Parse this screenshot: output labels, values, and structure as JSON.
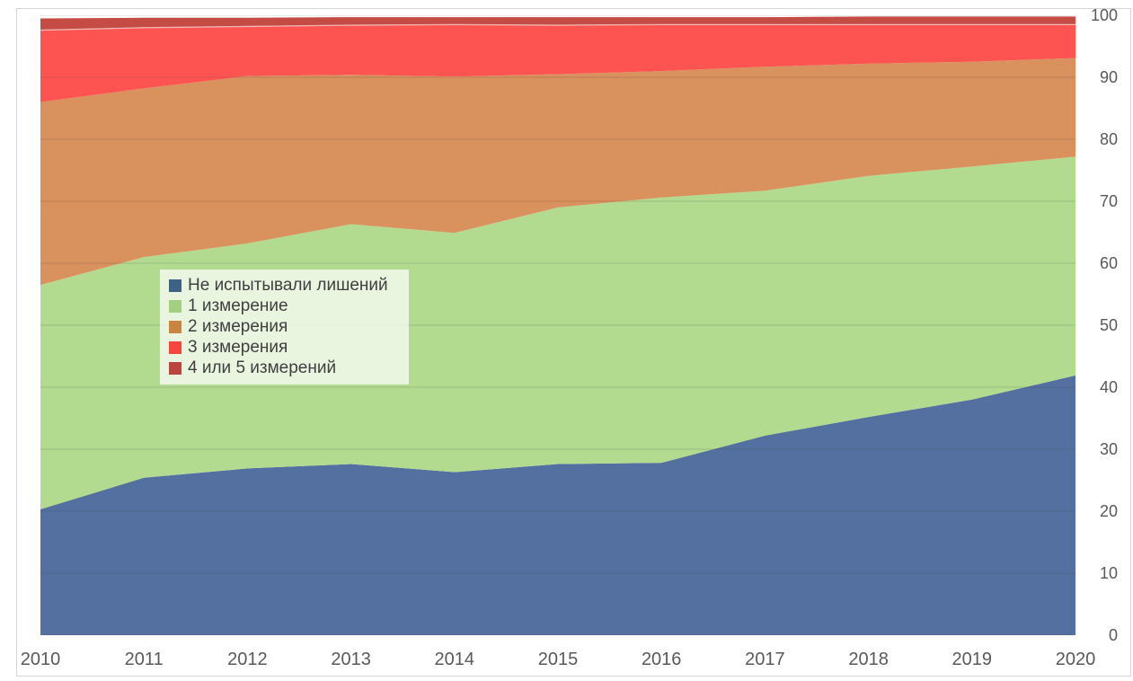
{
  "figure": {
    "background": "#FFFFFF",
    "border_color": "#D4D4D4",
    "axis_text_color": "#595959",
    "legend_text_color": "#3F3F3F",
    "legend_background": "rgba(255,255,255,0.72)"
  },
  "chart_data": {
    "type": "area",
    "stacked": true,
    "title": "",
    "xlabel": "",
    "ylabel": "",
    "x": [
      "2010",
      "2011",
      "2012",
      "2013",
      "2014",
      "2015",
      "2016",
      "2017",
      "2018",
      "2019",
      "2020"
    ],
    "series": [
      {
        "name": "Не испытывали лишений",
        "legend_color": "#3E6286",
        "color": "#5470A0",
        "values": [
          20.3,
          25.4,
          26.9,
          27.6,
          26.3,
          27.6,
          27.8,
          32.2,
          35.2,
          38.0,
          41.9
        ]
      },
      {
        "name": "1 измерение",
        "legend_color": "#A2D080",
        "color": "#B2DB90",
        "values": [
          36.2,
          35.6,
          36.3,
          38.7,
          38.6,
          41.4,
          42.8,
          39.5,
          38.9,
          37.6,
          35.3
        ]
      },
      {
        "name": "2 измерения",
        "legend_color": "#C8853F",
        "color": "#D9915D",
        "values": [
          29.5,
          27.2,
          27.0,
          24.1,
          25.2,
          21.5,
          20.4,
          20.0,
          18.1,
          16.9,
          15.9
        ]
      },
      {
        "name": "3 измерения",
        "legend_color": "#F6463F",
        "color": "#FD5452",
        "values": [
          11.6,
          9.8,
          8.0,
          8.0,
          8.4,
          7.9,
          7.5,
          6.8,
          6.3,
          6.0,
          5.4
        ]
      },
      {
        "name": "4 или 5 измерений",
        "legend_color": "#BB443E",
        "color": "#C54C44",
        "values": [
          1.9,
          1.6,
          1.4,
          1.3,
          1.2,
          1.3,
          1.2,
          1.2,
          1.3,
          1.3,
          1.3
        ]
      }
    ],
    "ylim": [
      0,
      100
    ],
    "yticks": [
      0,
      10,
      20,
      30,
      40,
      50,
      60,
      70,
      80,
      90,
      100
    ],
    "y_axis_side": "right",
    "grid": true,
    "gridline_color": "rgba(70,70,70,0.16)",
    "legend_position": "inside-left"
  }
}
